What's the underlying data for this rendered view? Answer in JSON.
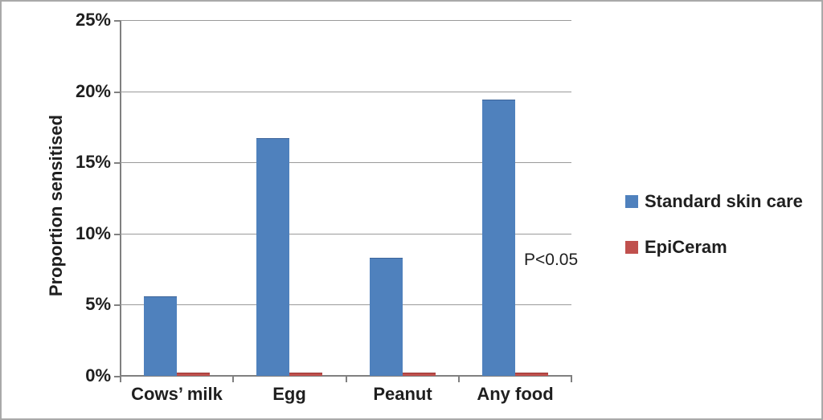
{
  "chart_data": {
    "type": "bar",
    "title": "",
    "ylabel": "Proportion sensitised",
    "xlabel": "",
    "ylim": [
      0,
      25
    ],
    "grid": true,
    "legend_position": "right",
    "annotation": "P<0.05",
    "categories": [
      "Cows’ milk",
      "Egg",
      "Peanut",
      "Any food"
    ],
    "series": [
      {
        "name": "Standard skin care",
        "color": "#4f81bd",
        "border_color": "#3d6499",
        "values": [
          5.6,
          16.7,
          8.3,
          19.4
        ]
      },
      {
        "name": "EpiCeram",
        "color": "#c0504d",
        "border_color": "#99322f",
        "values": [
          0.2,
          0.2,
          0.2,
          0.2
        ]
      }
    ],
    "yticks": [
      {
        "value": 0,
        "label": "0%"
      },
      {
        "value": 5,
        "label": "5%"
      },
      {
        "value": 10,
        "label": "10%"
      },
      {
        "value": 15,
        "label": "15%"
      },
      {
        "value": 20,
        "label": "20%"
      },
      {
        "value": 25,
        "label": "25%"
      }
    ],
    "colors": {
      "gridline": "#9a9a9a",
      "axis": "#808080",
      "text": "#1f1f1f",
      "frame_border": "#a9a9a9",
      "background": "#ffffff"
    }
  }
}
